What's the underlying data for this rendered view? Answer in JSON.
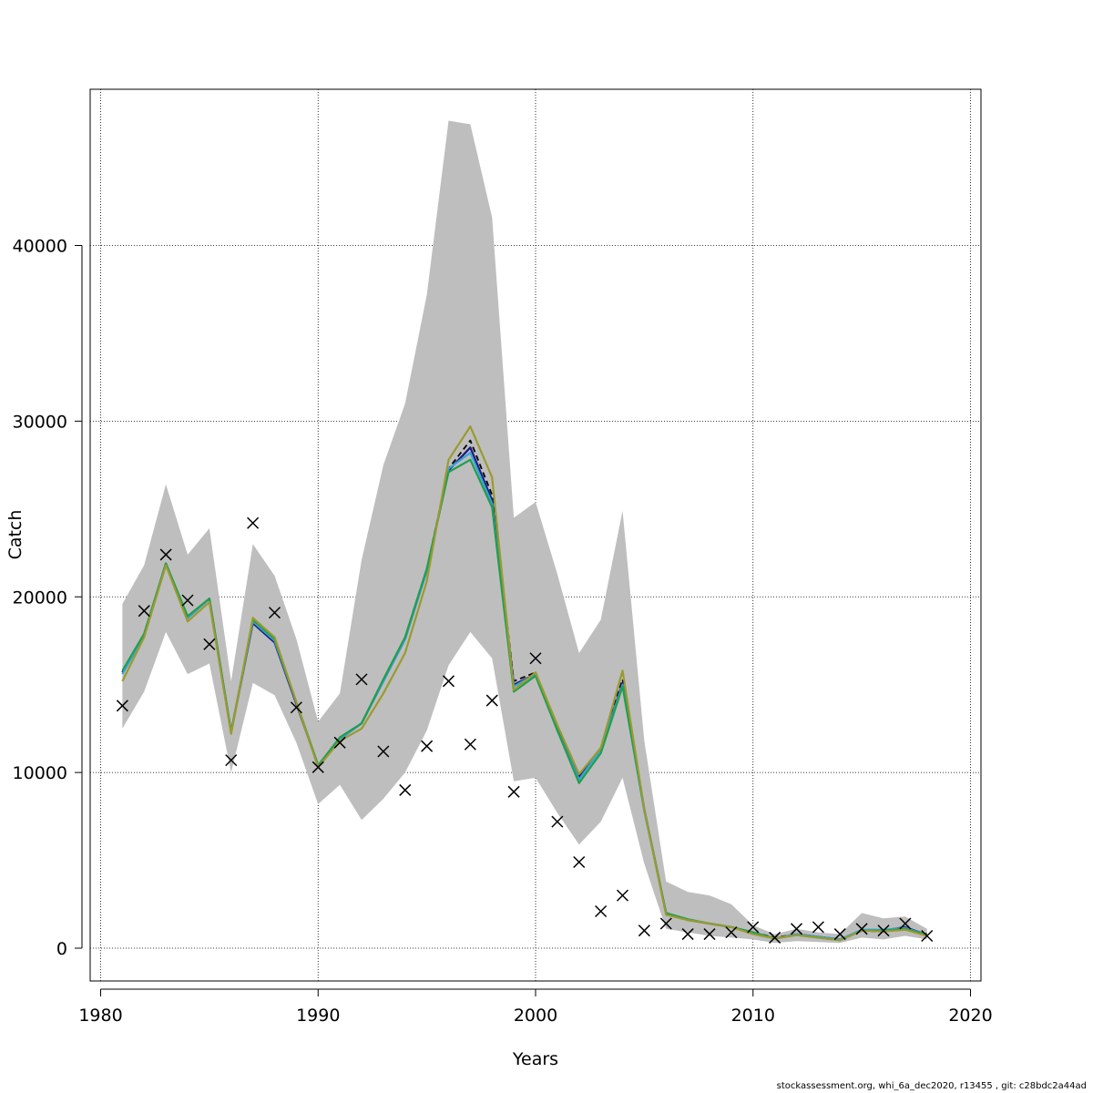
{
  "chart_data": {
    "type": "line",
    "title": "",
    "xlabel": "Years",
    "ylabel": "Catch",
    "xlim": [
      1980,
      2020
    ],
    "ylim": [
      0,
      48000
    ],
    "x_ticks": [
      1980,
      1990,
      2000,
      2010,
      2020
    ],
    "y_ticks": [
      0,
      10000,
      20000,
      30000,
      40000
    ],
    "grid": true,
    "legend": "none",
    "x": [
      1981,
      1982,
      1983,
      1984,
      1985,
      1986,
      1987,
      1988,
      1989,
      1990,
      1991,
      1992,
      1993,
      1994,
      1995,
      1996,
      1997,
      1998,
      1999,
      2000,
      2001,
      2002,
      2003,
      2004,
      2005,
      2006,
      2007,
      2008,
      2009,
      2010,
      2011,
      2012,
      2013,
      2014,
      2015,
      2016,
      2017,
      2018
    ],
    "band": {
      "color": "#bebebe",
      "upper": [
        19600,
        21800,
        26400,
        22400,
        23900,
        15200,
        23000,
        21200,
        17600,
        12900,
        14500,
        22100,
        27500,
        31000,
        37200,
        47100,
        46900,
        41600,
        24500,
        25400,
        21300,
        16800,
        18700,
        24900,
        11800,
        3800,
        3200,
        3000,
        2500,
        1300,
        800,
        1100,
        900,
        800,
        2000,
        1700,
        1800,
        1100
      ],
      "lower": [
        12500,
        14600,
        18000,
        15600,
        16200,
        10000,
        15100,
        14400,
        11700,
        8200,
        9300,
        7300,
        8500,
        10000,
        12400,
        16100,
        18000,
        16500,
        9500,
        9700,
        7700,
        5900,
        7200,
        9700,
        4800,
        1100,
        900,
        700,
        600,
        500,
        300,
        400,
        350,
        300,
        600,
        500,
        700,
        500
      ]
    },
    "series": [
      {
        "color": "#000000",
        "dashed": true,
        "values": [
          15700,
          17800,
          21900,
          18800,
          19900,
          12300,
          18700,
          17600,
          14000,
          10400,
          11900,
          12800,
          15300,
          17700,
          21600,
          27300,
          28900,
          25800,
          15200,
          15700,
          12600,
          9800,
          11400,
          15300,
          7900,
          2000,
          1600,
          1400,
          1200,
          900,
          600,
          800,
          650,
          500,
          1000,
          950,
          1100,
          800
        ]
      },
      {
        "color": "#1a1a80",
        "dashed": false,
        "values": [
          15700,
          17800,
          21900,
          18800,
          19900,
          12300,
          18500,
          17400,
          13900,
          10400,
          11900,
          12800,
          15200,
          17600,
          21500,
          27200,
          28500,
          25500,
          15000,
          15600,
          12500,
          9700,
          11300,
          15100,
          7900,
          2000,
          1600,
          1400,
          1200,
          900,
          550,
          800,
          650,
          500,
          1000,
          1000,
          1200,
          750
        ]
      },
      {
        "color": "#3ba3d6",
        "dashed": false,
        "values": [
          15600,
          17800,
          21900,
          18800,
          19900,
          12300,
          18600,
          17500,
          14000,
          10400,
          11900,
          12800,
          15200,
          17600,
          21500,
          27300,
          28200,
          25300,
          14900,
          15600,
          12400,
          9600,
          11300,
          15000,
          7800,
          2000,
          1600,
          1400,
          1200,
          900,
          550,
          800,
          650,
          500,
          1050,
          1050,
          1150,
          750
        ]
      },
      {
        "color": "#1f9e50",
        "dashed": false,
        "values": [
          15800,
          17900,
          21900,
          18900,
          19900,
          12300,
          18700,
          17600,
          14000,
          10400,
          12000,
          12800,
          15300,
          17700,
          21600,
          27100,
          27800,
          25100,
          14600,
          15500,
          12400,
          9400,
          11100,
          14900,
          7900,
          2000,
          1650,
          1400,
          1200,
          900,
          550,
          750,
          600,
          450,
          1000,
          1000,
          1100,
          750
        ]
      },
      {
        "color": "#9a9a30",
        "dashed": false,
        "values": [
          15200,
          17700,
          21800,
          18600,
          19700,
          12200,
          18800,
          17700,
          14000,
          10300,
          11800,
          12500,
          14500,
          16800,
          20900,
          27800,
          29700,
          26800,
          14700,
          15700,
          12700,
          9900,
          11400,
          15800,
          7900,
          1900,
          1600,
          1400,
          1200,
          800,
          550,
          750,
          600,
          450,
          1000,
          950,
          1050,
          700
        ]
      }
    ],
    "observed": {
      "marker": "x",
      "values": [
        13800,
        19200,
        22400,
        19800,
        17300,
        10700,
        24200,
        19100,
        13700,
        10300,
        11700,
        15300,
        11200,
        9000,
        11500,
        15200,
        11600,
        14100,
        8900,
        16500,
        7200,
        4900,
        2100,
        3000,
        1000,
        1400,
        800,
        800,
        900,
        1200,
        600,
        1100,
        1200,
        800,
        1100,
        1000,
        1400,
        700
      ]
    }
  },
  "footer": "stockassessment.org, whi_6a_dec2020, r13455 , git: c28bdc2a44ad"
}
